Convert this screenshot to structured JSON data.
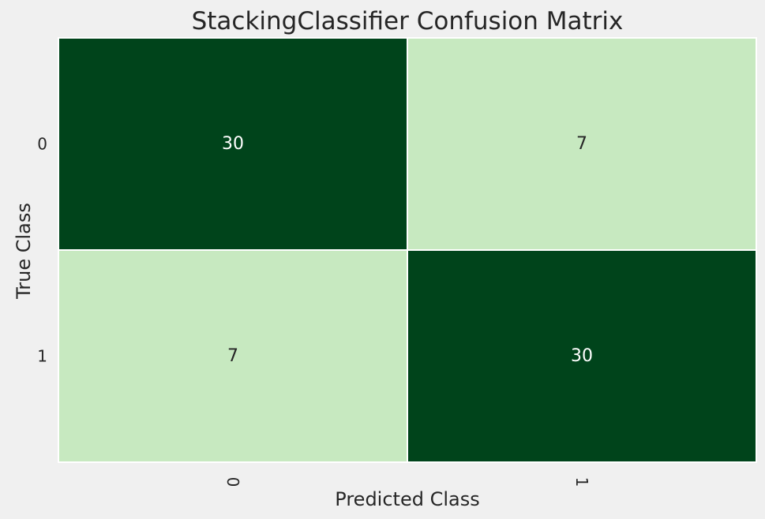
{
  "chart_data": {
    "type": "heatmap",
    "title": "StackingClassifier Confusion Matrix",
    "xlabel": "Predicted Class",
    "ylabel": "True Class",
    "x_categories": [
      "0",
      "1"
    ],
    "y_categories": [
      "0",
      "1"
    ],
    "values": [
      [
        30,
        7
      ],
      [
        7,
        30
      ]
    ],
    "colormap": "Greens",
    "colors": {
      "high": "#00441b",
      "low": "#c7e9c0",
      "text_on_dark": "#ffffff",
      "text_on_light": "#262626",
      "background": "#f0f0f0"
    },
    "legend": "none",
    "grid": false
  }
}
